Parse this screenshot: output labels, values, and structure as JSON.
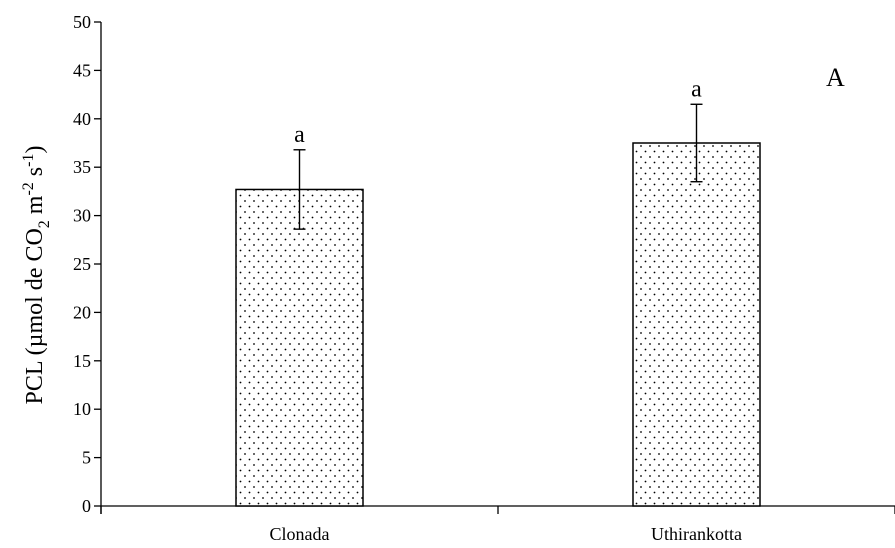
{
  "chart_data": {
    "type": "bar",
    "categories": [
      "Clonada",
      "Uthirankotta"
    ],
    "values": [
      32.7,
      37.5
    ],
    "error": [
      4.1,
      4.0
    ],
    "annotations": [
      "a",
      "a"
    ],
    "panel_label": "A",
    "xlabel": "",
    "ylabel": {
      "prefix": "PCL (µmol de CO",
      "sub": "2",
      "mid1": " m",
      "sup1": "-2",
      "mid2": " s",
      "sup2": "-1",
      "suffix": ")"
    },
    "ylim": [
      0,
      50
    ],
    "yticks": [
      0,
      5,
      10,
      15,
      20,
      25,
      30,
      35,
      40,
      45,
      50
    ],
    "grid": false,
    "bar_fill": "dotted pattern",
    "colors": {
      "bar_fill": "#ffffff",
      "bar_edge": "#000000",
      "dots": "#000000"
    }
  }
}
